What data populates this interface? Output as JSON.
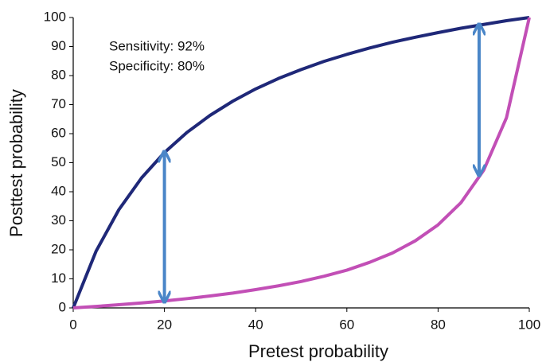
{
  "chart_data": {
    "type": "line",
    "xlabel": "Pretest probability",
    "ylabel": "Posttest probability",
    "annotations": [
      "Sensitivity: 92%",
      "Specificity: 80%"
    ],
    "x": [
      0,
      5,
      10,
      15,
      20,
      25,
      30,
      35,
      40,
      45,
      50,
      55,
      60,
      65,
      70,
      75,
      80,
      85,
      90,
      95,
      100
    ],
    "series": [
      {
        "color": "#1f2878",
        "values": [
          0,
          19.5,
          33.8,
          44.8,
          53.5,
          60.5,
          66.3,
          71.2,
          75.4,
          79.0,
          82.1,
          84.9,
          87.3,
          89.5,
          91.5,
          93.2,
          94.8,
          96.3,
          97.6,
          98.9,
          100
        ]
      },
      {
        "color": "#c24fb6",
        "values": [
          0,
          0.5,
          1.1,
          1.7,
          2.4,
          3.2,
          4.1,
          5.1,
          6.3,
          7.6,
          9.1,
          10.9,
          13.0,
          15.7,
          18.9,
          23.1,
          28.6,
          36.2,
          47.4,
          65.5,
          100
        ]
      }
    ],
    "arrows": {
      "color": "#4a86c8",
      "x": [
        20,
        89
      ],
      "from": [
        53.5,
        97.4
      ],
      "to": [
        2.4,
        46
      ]
    },
    "xlim": [
      0,
      100
    ],
    "ylim": [
      0,
      100
    ],
    "xticks": [
      0,
      20,
      40,
      60,
      80,
      100
    ],
    "yticks": [
      0,
      10,
      20,
      30,
      40,
      50,
      60,
      70,
      80,
      90,
      100
    ]
  }
}
